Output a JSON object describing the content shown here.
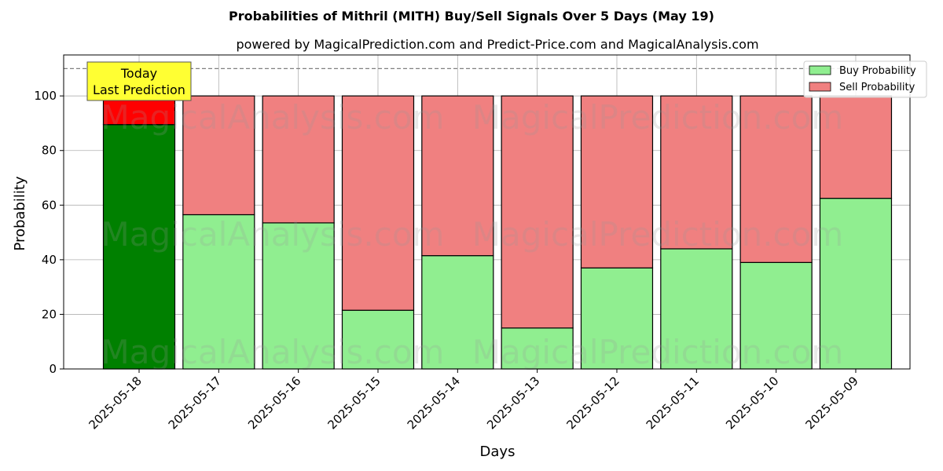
{
  "chart_data": {
    "type": "bar",
    "stacked": true,
    "title": "Probabilities of Mithril (MITH) Buy/Sell Signals Over 5 Days (May 19)",
    "subtitle": "powered by MagicalPrediction.com and Predict-Price.com and MagicalAnalysis.com",
    "xlabel": "Days",
    "ylabel": "Probability",
    "ylim": [
      0,
      115
    ],
    "yticks": [
      0,
      20,
      40,
      60,
      80,
      100
    ],
    "grid": true,
    "legend_position": "top-right",
    "reference_line": 110,
    "categories": [
      "2025-05-18",
      "2025-05-17",
      "2025-05-16",
      "2025-05-15",
      "2025-05-14",
      "2025-05-13",
      "2025-05-12",
      "2025-05-11",
      "2025-05-10",
      "2025-05-09"
    ],
    "series": [
      {
        "name": "Buy Probability",
        "color": "#90ee90",
        "highlight_color": "#008000",
        "values": [
          89.5,
          56.5,
          53.5,
          21.5,
          41.5,
          15.0,
          37.0,
          44.0,
          39.0,
          62.5
        ]
      },
      {
        "name": "Sell Probability",
        "color": "#f08080",
        "highlight_color": "#ff0000",
        "values": [
          10.5,
          43.5,
          46.5,
          78.5,
          58.5,
          85.0,
          63.0,
          56.0,
          61.0,
          37.5
        ]
      }
    ],
    "annotation": {
      "lines": [
        "Today",
        "Last Prediction"
      ],
      "category_index": 0,
      "box_color": "#ffff33"
    },
    "watermarks": [
      "MagicalAnalysis.com",
      "MagicalPrediction.com"
    ]
  }
}
